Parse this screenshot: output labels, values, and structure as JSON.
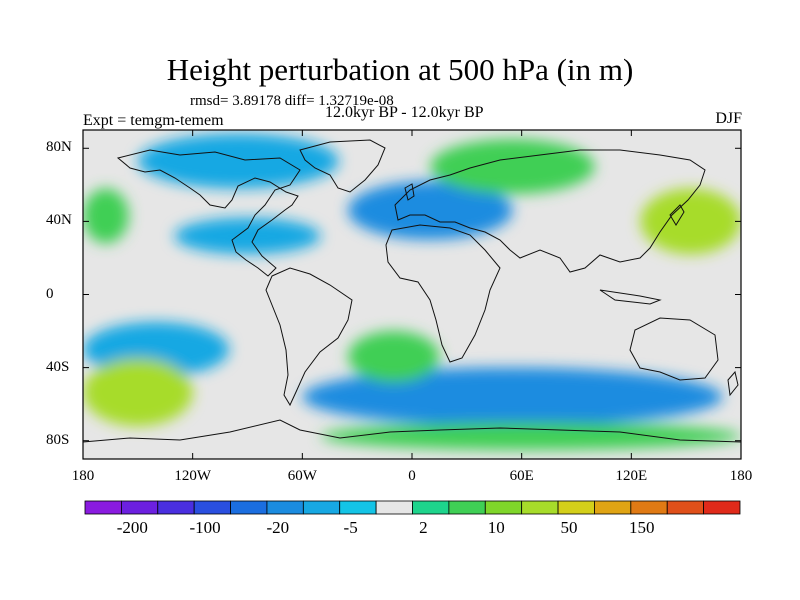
{
  "title": "Height perturbation at 500 hPa (in m)",
  "stats": "rmsd= 3.89178 diff= 1.32719e-08",
  "experiment": "Expt = temgm-temem",
  "period": "12.0kyr BP - 12.0kyr BP",
  "season": "DJF",
  "map": {
    "projection": "cylindrical-equidistant",
    "lon_range": [
      -180,
      180
    ],
    "lat_range": [
      -90,
      90
    ],
    "x_tick_labels": [
      "180",
      "120W",
      "60W",
      "0",
      "60E",
      "120E",
      "180"
    ],
    "y_tick_labels": [
      "80N",
      "40N",
      "0",
      "40S",
      "80S"
    ],
    "background_color": "#e6e6e6",
    "anomaly_features": [
      {
        "name": "arctic-canada-negative",
        "lon": [
          -150,
          -40
        ],
        "lat": [
          58,
          88
        ],
        "color": "#17a8e3"
      },
      {
        "name": "north-atlantic-europe-negative",
        "lon": [
          -35,
          55
        ],
        "lat": [
          30,
          62
        ],
        "color": "#1b8ce0"
      },
      {
        "name": "siberia-positive",
        "lon": [
          10,
          100
        ],
        "lat": [
          55,
          85
        ],
        "color": "#3fcf55"
      },
      {
        "name": "north-pacific-positive",
        "lon": [
          125,
          180
        ],
        "lat": [
          22,
          58
        ],
        "color": "#a7dc2a"
      },
      {
        "name": "west-pacific-positive",
        "lon": [
          -180,
          -155
        ],
        "lat": [
          28,
          58
        ],
        "color": "#3fcf55"
      },
      {
        "name": "east-pacific-negative",
        "lon": [
          -130,
          -50
        ],
        "lat": [
          22,
          42
        ],
        "color": "#17a8e3"
      },
      {
        "name": "south-pacific-negative",
        "lon": [
          -180,
          -100
        ],
        "lat": [
          -45,
          -15
        ],
        "color": "#17a8e3"
      },
      {
        "name": "southern-ocean-negative",
        "lon": [
          -60,
          170
        ],
        "lat": [
          -72,
          -40
        ],
        "color": "#1b8ce0"
      },
      {
        "name": "south-pacific-positive",
        "lon": [
          -180,
          -120
        ],
        "lat": [
          -72,
          -35
        ],
        "color": "#a7dc2a"
      },
      {
        "name": "south-atlantic-positive",
        "lon": [
          -35,
          15
        ],
        "lat": [
          -48,
          -20
        ],
        "color": "#3fcf55"
      },
      {
        "name": "antarctic-coast-positive",
        "lon": [
          -50,
          180
        ],
        "lat": [
          -85,
          -70
        ],
        "color": "#3fcf55"
      }
    ]
  },
  "colorbar": {
    "colors": [
      "#8a1be0",
      "#6c20e0",
      "#4a2fe0",
      "#2a4fe0",
      "#1b6ee0",
      "#1b8ce0",
      "#17a8e3",
      "#14c4e6",
      "#e6e6e6",
      "#1ed48c",
      "#3fcf55",
      "#7fd62a",
      "#a7dc2a",
      "#d4cf1a",
      "#e0a414",
      "#e07a14",
      "#e0501a",
      "#e02a1a"
    ],
    "labels": [
      "-200",
      "-100",
      "-20",
      "-5",
      "2",
      "10",
      "50",
      "150"
    ]
  }
}
